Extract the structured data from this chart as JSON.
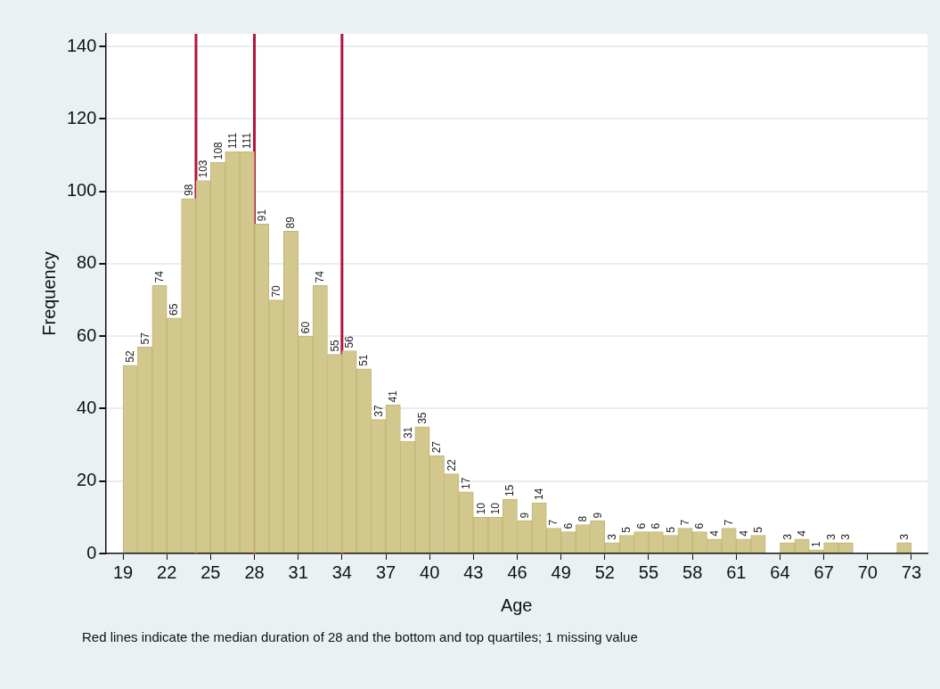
{
  "chart_data": {
    "type": "histogram",
    "xlabel": "Age",
    "ylabel": "Frequency",
    "bins": [
      19,
      20,
      21,
      22,
      23,
      24,
      25,
      26,
      27,
      28,
      29,
      30,
      31,
      32,
      33,
      34,
      35,
      36,
      37,
      38,
      39,
      40,
      41,
      42,
      43,
      44,
      45,
      46,
      47,
      48,
      49,
      50,
      51,
      52,
      53,
      54,
      55,
      56,
      57,
      58,
      59,
      60,
      61,
      62,
      63,
      64,
      65,
      66,
      67,
      68,
      69,
      70,
      71,
      72,
      73
    ],
    "values": [
      52,
      57,
      74,
      65,
      98,
      103,
      108,
      111,
      111,
      91,
      70,
      89,
      60,
      74,
      55,
      56,
      51,
      37,
      41,
      31,
      35,
      27,
      22,
      17,
      10,
      10,
      15,
      9,
      14,
      7,
      6,
      8,
      9,
      3,
      5,
      6,
      6,
      5,
      7,
      6,
      4,
      7,
      4,
      5,
      0,
      3,
      4,
      1,
      3,
      3,
      0,
      0,
      0,
      3
    ],
    "value_labels": [
      "52",
      "57",
      "74",
      "65",
      "98",
      "103",
      "108",
      "111",
      "111",
      "91",
      "70",
      "89",
      "60",
      "74",
      "55",
      "56",
      "51",
      "37",
      "41",
      "31",
      "35",
      "27",
      "22",
      "17",
      "10",
      "10",
      "15",
      "9",
      "14",
      "7",
      "6",
      "8",
      "9",
      "3",
      "5",
      "6",
      "6",
      "5",
      "7",
      "6",
      "4",
      "7",
      "4",
      "5",
      null,
      "3",
      "4",
      "1",
      "3",
      "3",
      null,
      null,
      null,
      "3"
    ],
    "color": "#d2c78c",
    "xlim": [
      17.8,
      74.1
    ],
    "xticks": [
      19,
      22,
      25,
      28,
      31,
      34,
      37,
      40,
      43,
      46,
      49,
      52,
      55,
      58,
      61,
      64,
      67,
      70,
      73
    ],
    "ylim": [
      0,
      143.5
    ],
    "yticks": [
      0,
      20,
      40,
      60,
      80,
      100,
      120,
      140
    ],
    "grid": "y",
    "legend": false,
    "ref_lines": [
      {
        "axis": "x",
        "value": 24,
        "color": "#b3143c"
      },
      {
        "axis": "x",
        "value": 28,
        "color": "#b3143c"
      },
      {
        "axis": "x",
        "value": 34,
        "color": "#b3143c"
      }
    ],
    "annotations": [
      "Red lines indicate the median duration of 28 and the bottom and top quartiles; 1 missing value"
    ]
  }
}
